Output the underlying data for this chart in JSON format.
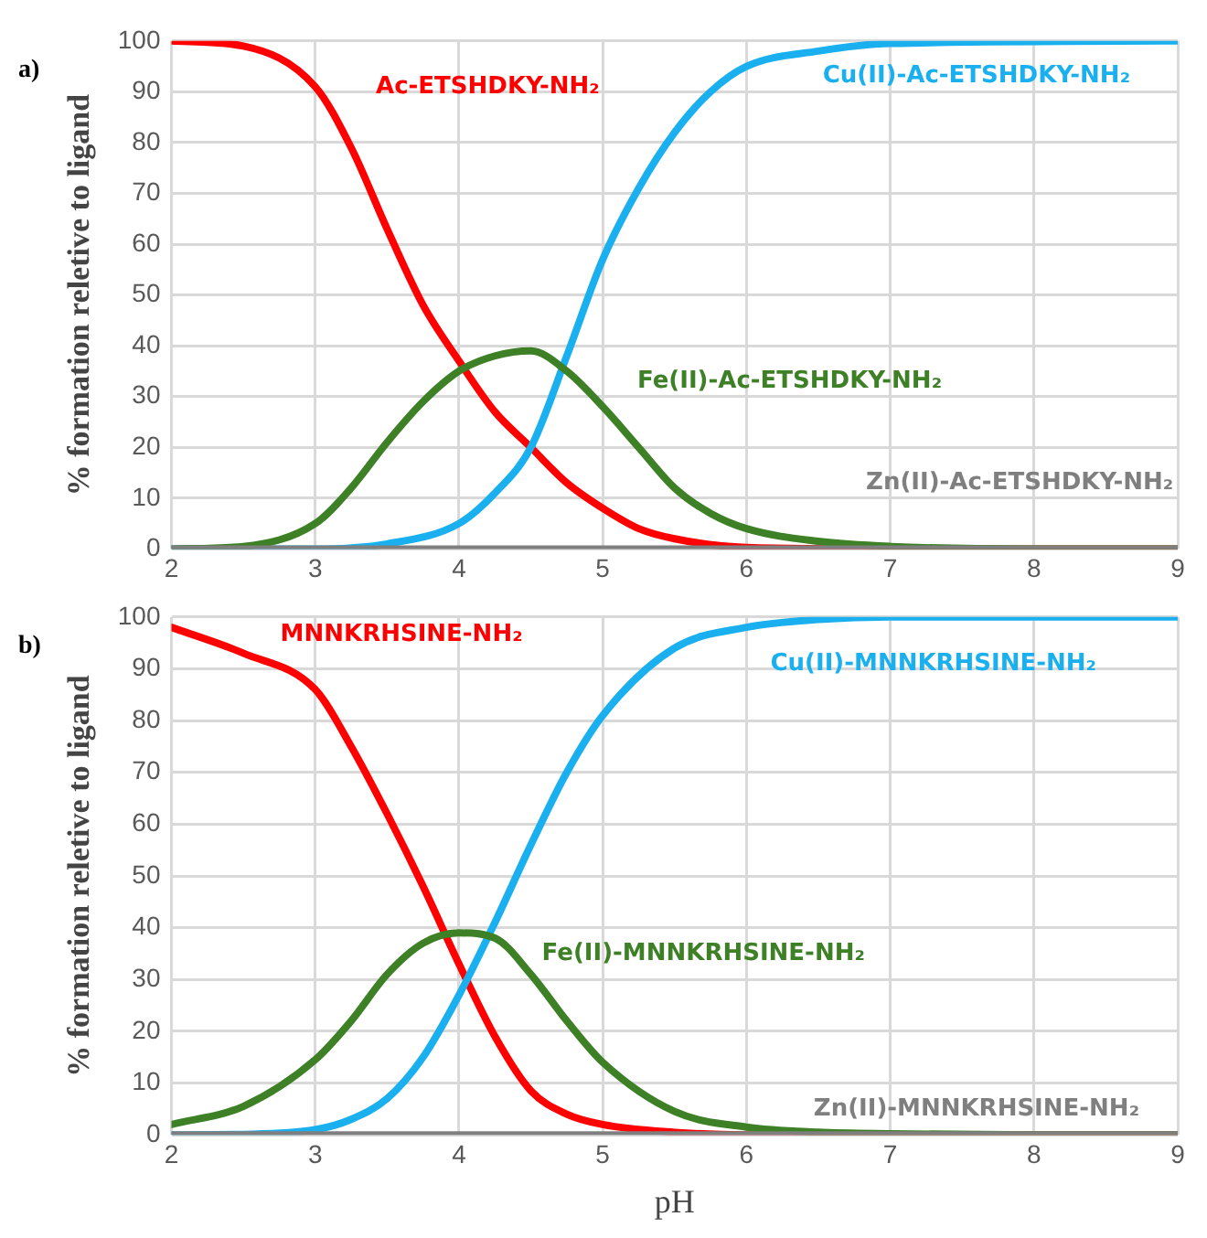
{
  "chart_data": [
    {
      "type": "line",
      "annotations": [
        "a)"
      ],
      "ylabel": "% formation reletive to ligand",
      "xlim": [
        2,
        9
      ],
      "xticks": [
        2,
        3,
        4,
        5,
        6,
        7,
        8,
        9
      ],
      "ylim": [
        0,
        100
      ],
      "yticks": [
        0,
        10,
        20,
        30,
        40,
        50,
        60,
        70,
        80,
        90,
        100
      ],
      "grid": true,
      "series": [
        {
          "name": "Ac-ETSHDKY-NH₂",
          "color": "#ff0000",
          "x": [
            2,
            2.5,
            3,
            3.25,
            3.5,
            3.75,
            4,
            4.25,
            4.5,
            4.75,
            5,
            5.25,
            5.5,
            6,
            7,
            9
          ],
          "values": [
            100,
            99,
            91,
            79,
            63,
            48,
            37,
            27,
            20,
            13,
            8,
            4,
            2,
            0.3,
            0,
            0
          ]
        },
        {
          "name": "Cu(II)-Ac-ETSHDKY-NH₂",
          "color": "#1ab0ef",
          "x": [
            2,
            3,
            3.5,
            4,
            4.25,
            4.5,
            4.75,
            5,
            5.25,
            5.5,
            5.75,
            6,
            6.5,
            7,
            9
          ],
          "values": [
            0,
            0,
            1,
            5,
            11,
            20,
            38,
            57,
            71,
            82,
            90,
            95,
            98,
            99.5,
            100
          ]
        },
        {
          "name": "Fe(II)-Ac-ETSHDKY-NH₂",
          "color": "#3d8026",
          "x": [
            2,
            2.5,
            3,
            3.25,
            3.5,
            3.75,
            4,
            4.25,
            4.5,
            4.75,
            5,
            5.25,
            5.5,
            5.75,
            6,
            6.5,
            7,
            8,
            9
          ],
          "values": [
            0,
            0.5,
            5,
            12,
            21,
            29,
            35,
            38,
            39,
            35,
            28,
            20,
            12,
            7,
            4,
            1.5,
            0.5,
            0,
            0
          ]
        },
        {
          "name": "Zn(II)-Ac-ETSHDKY-NH₂",
          "color": "#7f7f7f",
          "x": [
            2,
            5,
            9
          ],
          "values": [
            0,
            0,
            0
          ]
        }
      ]
    },
    {
      "type": "line",
      "annotations": [
        "b)"
      ],
      "ylabel": "% formation reletive to ligand",
      "xlabel": "pH",
      "xlim": [
        2,
        9
      ],
      "xticks": [
        2,
        3,
        4,
        5,
        6,
        7,
        8,
        9
      ],
      "ylim": [
        0,
        100
      ],
      "yticks": [
        0,
        10,
        20,
        30,
        40,
        50,
        60,
        70,
        80,
        90,
        100
      ],
      "grid": true,
      "series": [
        {
          "name": "MNNKRHSINE-NH₂",
          "color": "#ff0000",
          "x": [
            2,
            2.5,
            3,
            3.25,
            3.5,
            3.75,
            4,
            4.25,
            4.5,
            4.75,
            5,
            5.5,
            6,
            7,
            9
          ],
          "values": [
            98,
            93,
            86,
            75,
            62,
            48,
            33,
            19,
            8.5,
            4,
            2,
            0.5,
            0,
            0,
            0
          ]
        },
        {
          "name": "Cu(II)-MNNKRHSINE-NH₂",
          "color": "#1ab0ef",
          "x": [
            2,
            2.5,
            3,
            3.25,
            3.5,
            3.75,
            4,
            4.25,
            4.5,
            4.75,
            5,
            5.5,
            6,
            6.5,
            7,
            9
          ],
          "values": [
            0,
            0.1,
            1,
            3,
            7,
            15,
            27,
            41,
            56,
            70,
            81,
            94,
            98,
            99.5,
            100,
            100
          ]
        },
        {
          "name": "Fe(II)-MNNKRHSINE-NH₂",
          "color": "#3d8026",
          "x": [
            2,
            2.5,
            3,
            3.25,
            3.5,
            3.75,
            4,
            4.25,
            4.5,
            4.75,
            5,
            5.5,
            6,
            6.5,
            7,
            8,
            9
          ],
          "values": [
            2,
            5.5,
            14.5,
            22,
            31,
            37,
            39,
            38,
            31,
            22,
            14,
            4.5,
            1.5,
            0.5,
            0.2,
            0,
            0
          ]
        },
        {
          "name": "Zn(II)-MNNKRHSINE-NH₂",
          "color": "#7f7f7f",
          "x": [
            2,
            5,
            9
          ],
          "values": [
            0,
            0,
            0
          ]
        }
      ]
    }
  ]
}
